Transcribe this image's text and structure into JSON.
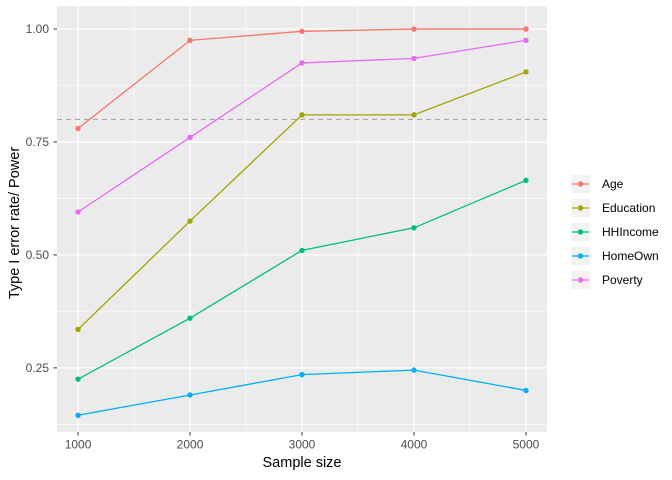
{
  "chart_data": {
    "type": "line",
    "title": "",
    "xlabel": "Sample size",
    "ylabel": "Type I error rate/ Power",
    "x": [
      1000,
      2000,
      3000,
      4000,
      5000
    ],
    "series": [
      {
        "name": "Age",
        "color": "#F8766D",
        "values": [
          0.78,
          0.975,
          0.995,
          1.0,
          1.0
        ]
      },
      {
        "name": "Education",
        "color": "#A3A500",
        "values": [
          0.335,
          0.575,
          0.81,
          0.81,
          0.905
        ]
      },
      {
        "name": "HHIncome",
        "color": "#00BF7D",
        "values": [
          0.225,
          0.36,
          0.51,
          0.56,
          0.665
        ]
      },
      {
        "name": "HomeOwn",
        "color": "#00B0F6",
        "values": [
          0.145,
          0.19,
          0.235,
          0.245,
          0.2
        ]
      },
      {
        "name": "Poverty",
        "color": "#E76BF3",
        "values": [
          0.595,
          0.76,
          0.925,
          0.935,
          0.975
        ]
      }
    ],
    "x_ticks": [
      1000,
      2000,
      3000,
      4000,
      5000
    ],
    "x_tick_labels": [
      "1000",
      "2000",
      "3000",
      "4000",
      "5000"
    ],
    "y_ticks": [
      0.25,
      0.5,
      0.75,
      1.0
    ],
    "y_tick_labels": [
      "0.25",
      "0.50",
      "0.75",
      "1.00"
    ],
    "x_minor": [
      1500,
      2500,
      3500,
      4500
    ],
    "y_minor": [
      0.125,
      0.375,
      0.625,
      0.875
    ],
    "xlim": [
      812,
      5188
    ],
    "ylim": [
      0.108,
      1.051
    ],
    "reference_line": {
      "y": 0.8,
      "style": "dashed"
    },
    "legend": {
      "position": "right",
      "entries": [
        "Age",
        "Education",
        "HHIncome",
        "HomeOwn",
        "Poverty"
      ]
    },
    "grid": true
  },
  "style": {
    "background": "#FFFFFF",
    "panel_bg": "#EBEBEB",
    "grid_color": "#FFFFFF",
    "tick_mark_color": "#333333",
    "tick_label_color": "#4D4D4D",
    "axis_title_color": "#000000",
    "reference_line_color": "#A8A8A8",
    "legend_key_bg": "#F2F2F2"
  }
}
